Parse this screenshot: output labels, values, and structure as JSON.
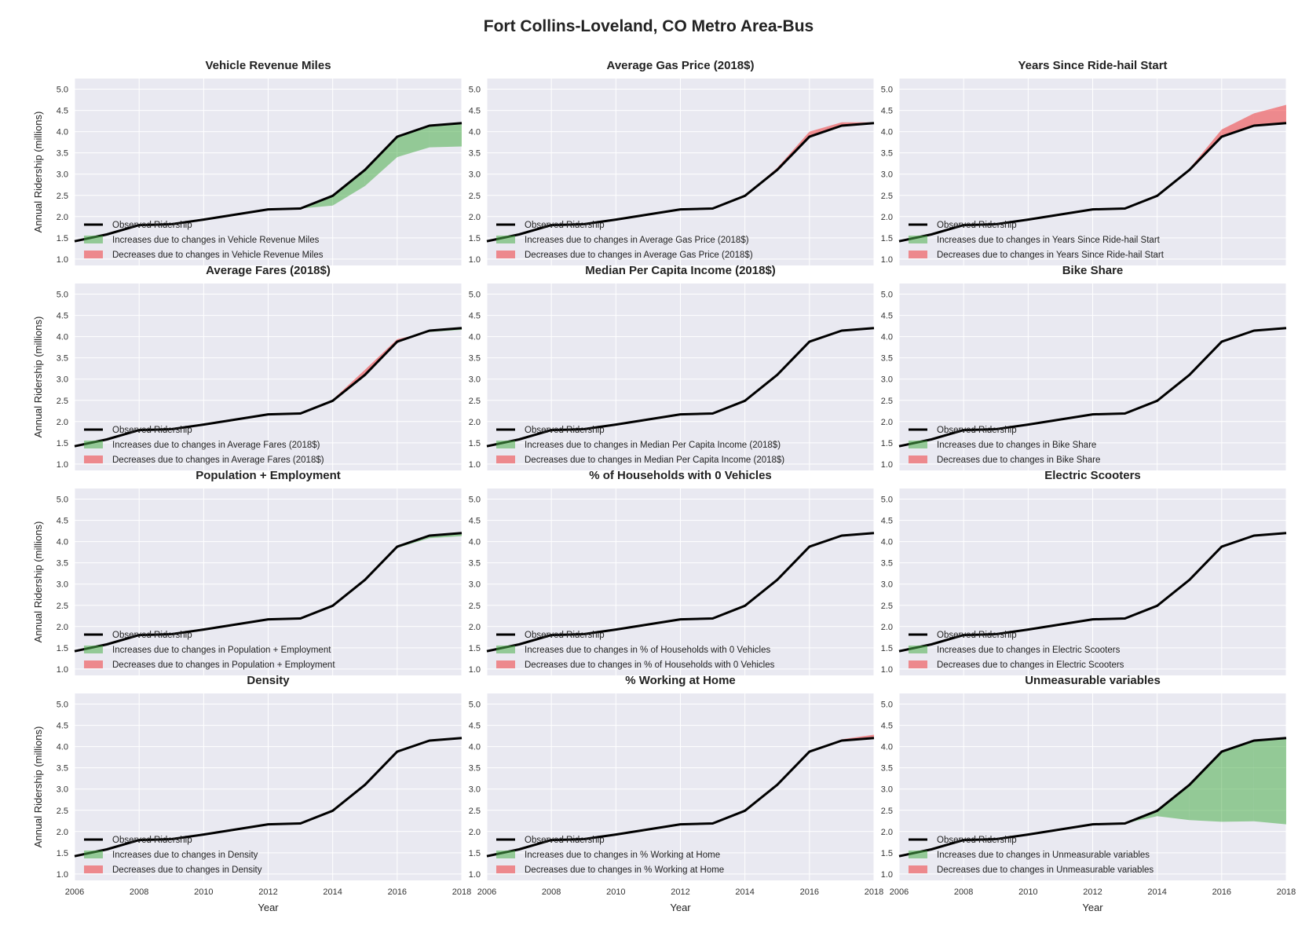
{
  "figure": {
    "title": "Fort Collins-Loveland, CO Metro Area-Bus",
    "xlabel": "Year",
    "ylabel": "Annual Ridership (millions)",
    "xlim": [
      2006,
      2018
    ],
    "ylim": [
      0.85,
      5.25
    ],
    "xticks": [
      2006,
      2008,
      2010,
      2012,
      2014,
      2016,
      2018
    ],
    "yticks": [
      1.0,
      1.5,
      2.0,
      2.5,
      3.0,
      3.5,
      4.0,
      4.5,
      5.0
    ],
    "colors": {
      "observed": "#000000",
      "increase": "#4daf4a",
      "decrease": "#f03b3b",
      "panel_bg": "#e9e9f1",
      "grid": "#ffffff"
    }
  },
  "chart_data": {
    "type": "line",
    "x": [
      2006,
      2007,
      2008,
      2009,
      2010,
      2011,
      2012,
      2013,
      2014,
      2015,
      2016,
      2017,
      2018
    ],
    "observed": [
      1.42,
      1.58,
      1.8,
      1.82,
      1.93,
      2.05,
      2.17,
      2.19,
      2.49,
      3.1,
      3.88,
      4.14,
      4.2
    ],
    "panels": [
      {
        "title": "Vehicle Revenue Miles",
        "series": [
          {
            "name": "Observed Ridership",
            "kind": "line"
          },
          {
            "name": "Increases due to changes in Vehicle Revenue Miles",
            "kind": "increase"
          },
          {
            "name": "Decreases due to changes in Vehicle Revenue Miles",
            "kind": "decrease"
          }
        ],
        "counterfactual": [
          1.42,
          1.58,
          1.8,
          1.82,
          1.93,
          2.05,
          2.17,
          2.19,
          2.26,
          2.72,
          3.4,
          3.63,
          3.65
        ]
      },
      {
        "title": "Average Gas Price (2018$)",
        "series": [
          {
            "name": "Observed Ridership",
            "kind": "line"
          },
          {
            "name": "Increases due to changes in Average Gas Price (2018$)",
            "kind": "increase"
          },
          {
            "name": "Decreases due to changes in Average Gas Price (2018$)",
            "kind": "decrease"
          }
        ],
        "counterfactual": [
          1.42,
          1.58,
          1.8,
          1.82,
          1.93,
          2.05,
          2.17,
          2.19,
          2.49,
          3.15,
          4.0,
          4.22,
          4.22
        ]
      },
      {
        "title": "Years Since Ride-hail Start",
        "series": [
          {
            "name": "Observed Ridership",
            "kind": "line"
          },
          {
            "name": "Increases due to changes in Years Since Ride-hail Start",
            "kind": "increase"
          },
          {
            "name": "Decreases due to changes in Years Since Ride-hail Start",
            "kind": "decrease"
          }
        ],
        "counterfactual": [
          1.42,
          1.58,
          1.8,
          1.82,
          1.93,
          2.05,
          2.17,
          2.19,
          2.49,
          3.13,
          4.05,
          4.43,
          4.63
        ]
      },
      {
        "title": "Average Fares (2018$)",
        "series": [
          {
            "name": "Observed Ridership",
            "kind": "line"
          },
          {
            "name": "Increases due to changes in Average Fares (2018$)",
            "kind": "increase"
          },
          {
            "name": "Decreases due to changes in Average Fares (2018$)",
            "kind": "decrease"
          }
        ],
        "counterfactual": [
          1.42,
          1.58,
          1.8,
          1.82,
          1.93,
          2.05,
          2.17,
          2.19,
          2.52,
          3.22,
          3.94,
          4.11,
          4.16
        ]
      },
      {
        "title": "Median Per Capita Income (2018$)",
        "series": [
          {
            "name": "Observed Ridership",
            "kind": "line"
          },
          {
            "name": "Increases due to changes in Median Per Capita Income (2018$)",
            "kind": "increase"
          },
          {
            "name": "Decreases due to changes in Median Per Capita Income (2018$)",
            "kind": "decrease"
          }
        ],
        "counterfactual": [
          1.42,
          1.58,
          1.8,
          1.82,
          1.93,
          2.05,
          2.17,
          2.19,
          2.49,
          3.1,
          3.88,
          4.14,
          4.2
        ]
      },
      {
        "title": "Bike Share",
        "series": [
          {
            "name": "Observed Ridership",
            "kind": "line"
          },
          {
            "name": "Increases due to changes in Bike Share",
            "kind": "increase"
          },
          {
            "name": "Decreases due to changes in Bike Share",
            "kind": "decrease"
          }
        ],
        "counterfactual": [
          1.42,
          1.58,
          1.8,
          1.82,
          1.93,
          2.05,
          2.17,
          2.19,
          2.49,
          3.1,
          3.88,
          4.14,
          4.2
        ]
      },
      {
        "title": "Population + Employment",
        "series": [
          {
            "name": "Observed Ridership",
            "kind": "line"
          },
          {
            "name": "Increases due to changes in Population + Employment",
            "kind": "increase"
          },
          {
            "name": "Decreases due to changes in Population + Employment",
            "kind": "decrease"
          }
        ],
        "counterfactual": [
          1.42,
          1.58,
          1.8,
          1.82,
          1.93,
          2.05,
          2.17,
          2.19,
          2.49,
          3.1,
          3.85,
          4.08,
          4.13
        ]
      },
      {
        "title": "% of Households with 0 Vehicles",
        "series": [
          {
            "name": "Observed Ridership",
            "kind": "line"
          },
          {
            "name": "Increases due to changes in % of Households with 0 Vehicles",
            "kind": "increase"
          },
          {
            "name": "Decreases due to changes in % of Households with 0 Vehicles",
            "kind": "decrease"
          }
        ],
        "counterfactual": [
          1.42,
          1.58,
          1.8,
          1.82,
          1.93,
          2.05,
          2.17,
          2.19,
          2.49,
          3.1,
          3.88,
          4.14,
          4.2
        ]
      },
      {
        "title": "Electric Scooters",
        "series": [
          {
            "name": "Observed Ridership",
            "kind": "line"
          },
          {
            "name": "Increases due to changes in Electric Scooters",
            "kind": "increase"
          },
          {
            "name": "Decreases due to changes in Electric Scooters",
            "kind": "decrease"
          }
        ],
        "counterfactual": [
          1.42,
          1.58,
          1.8,
          1.82,
          1.93,
          2.05,
          2.17,
          2.19,
          2.49,
          3.1,
          3.88,
          4.14,
          4.2
        ]
      },
      {
        "title": "Density",
        "series": [
          {
            "name": "Observed Ridership",
            "kind": "line"
          },
          {
            "name": "Increases due to changes in Density",
            "kind": "increase"
          },
          {
            "name": "Decreases due to changes in Density",
            "kind": "decrease"
          }
        ],
        "counterfactual": [
          1.42,
          1.58,
          1.8,
          1.82,
          1.93,
          2.05,
          2.17,
          2.19,
          2.49,
          3.1,
          3.88,
          4.14,
          4.2
        ]
      },
      {
        "title": "% Working at Home",
        "series": [
          {
            "name": "Observed Ridership",
            "kind": "line"
          },
          {
            "name": "Increases due to changes in % Working at Home",
            "kind": "increase"
          },
          {
            "name": "Decreases due to changes in % Working at Home",
            "kind": "decrease"
          }
        ],
        "counterfactual": [
          1.42,
          1.58,
          1.8,
          1.82,
          1.93,
          2.05,
          2.17,
          2.19,
          2.49,
          3.1,
          3.88,
          4.17,
          4.28
        ]
      },
      {
        "title": "Unmeasurable variables",
        "series": [
          {
            "name": "Observed Ridership",
            "kind": "line"
          },
          {
            "name": "Increases due to changes in Unmeasurable variables",
            "kind": "increase"
          },
          {
            "name": "Decreases due to changes in Unmeasurable variables",
            "kind": "decrease"
          }
        ],
        "counterfactual": [
          1.42,
          1.58,
          1.8,
          1.82,
          1.93,
          2.05,
          2.17,
          2.19,
          2.36,
          2.27,
          2.23,
          2.24,
          2.17
        ]
      }
    ]
  }
}
